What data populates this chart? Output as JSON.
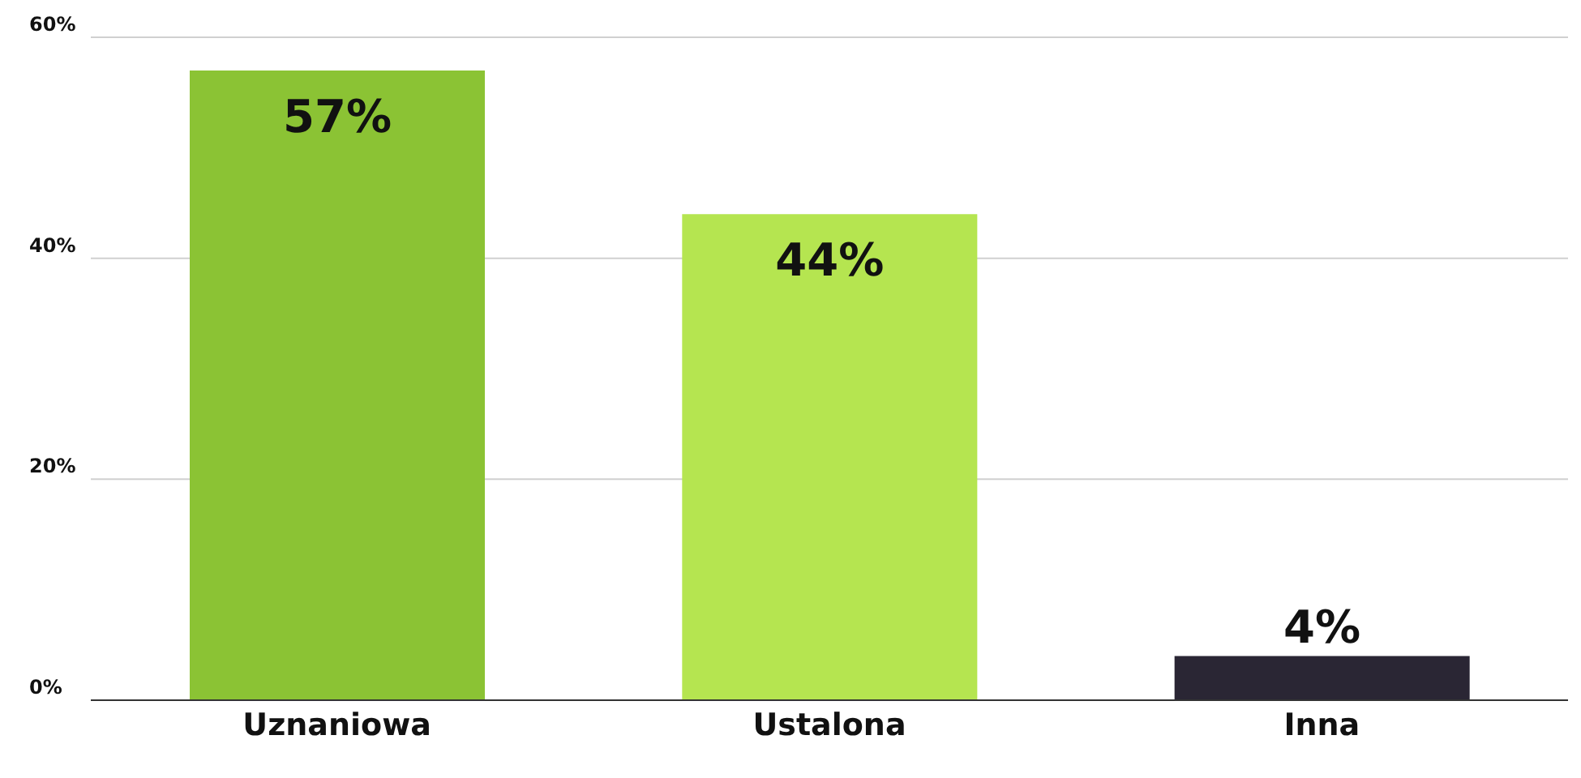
{
  "chart_data": {
    "type": "bar",
    "categories": [
      "Uznaniowa",
      "Ustalona",
      "Inna"
    ],
    "values": [
      57,
      44,
      4
    ],
    "colors": [
      "#8bc334",
      "#b5e550",
      "#2a2634"
    ],
    "ylim": [
      0,
      60
    ],
    "yticks": [
      {
        "value": 0,
        "label": "0%"
      },
      {
        "value": 20,
        "label": "20%"
      },
      {
        "value": 40,
        "label": "40%"
      },
      {
        "value": 60,
        "label": "60%"
      }
    ],
    "value_labels": [
      "57%",
      "44%",
      "4%"
    ],
    "grid": "y"
  }
}
